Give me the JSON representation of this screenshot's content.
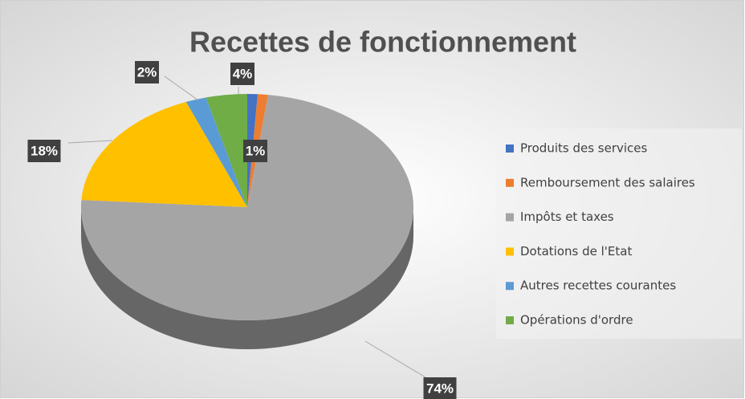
{
  "chart_data": {
    "type": "pie",
    "title": "Recettes de fonctionnement",
    "categories": [
      "Produits des services",
      "Remboursement des salaires",
      "Impôts et taxes",
      "Dotations de l'Etat",
      "Autres recettes courantes",
      "Opérations d'ordre"
    ],
    "values": [
      1,
      1,
      74,
      18,
      2,
      4
    ],
    "value_labels": [
      "1%",
      null,
      "74%",
      "18%",
      "2%",
      "4%"
    ],
    "colors": [
      "#4472c4",
      "#ed7d31",
      "#a5a5a5",
      "#ffc000",
      "#5b9bd5",
      "#70ad47"
    ],
    "legend": "right"
  }
}
